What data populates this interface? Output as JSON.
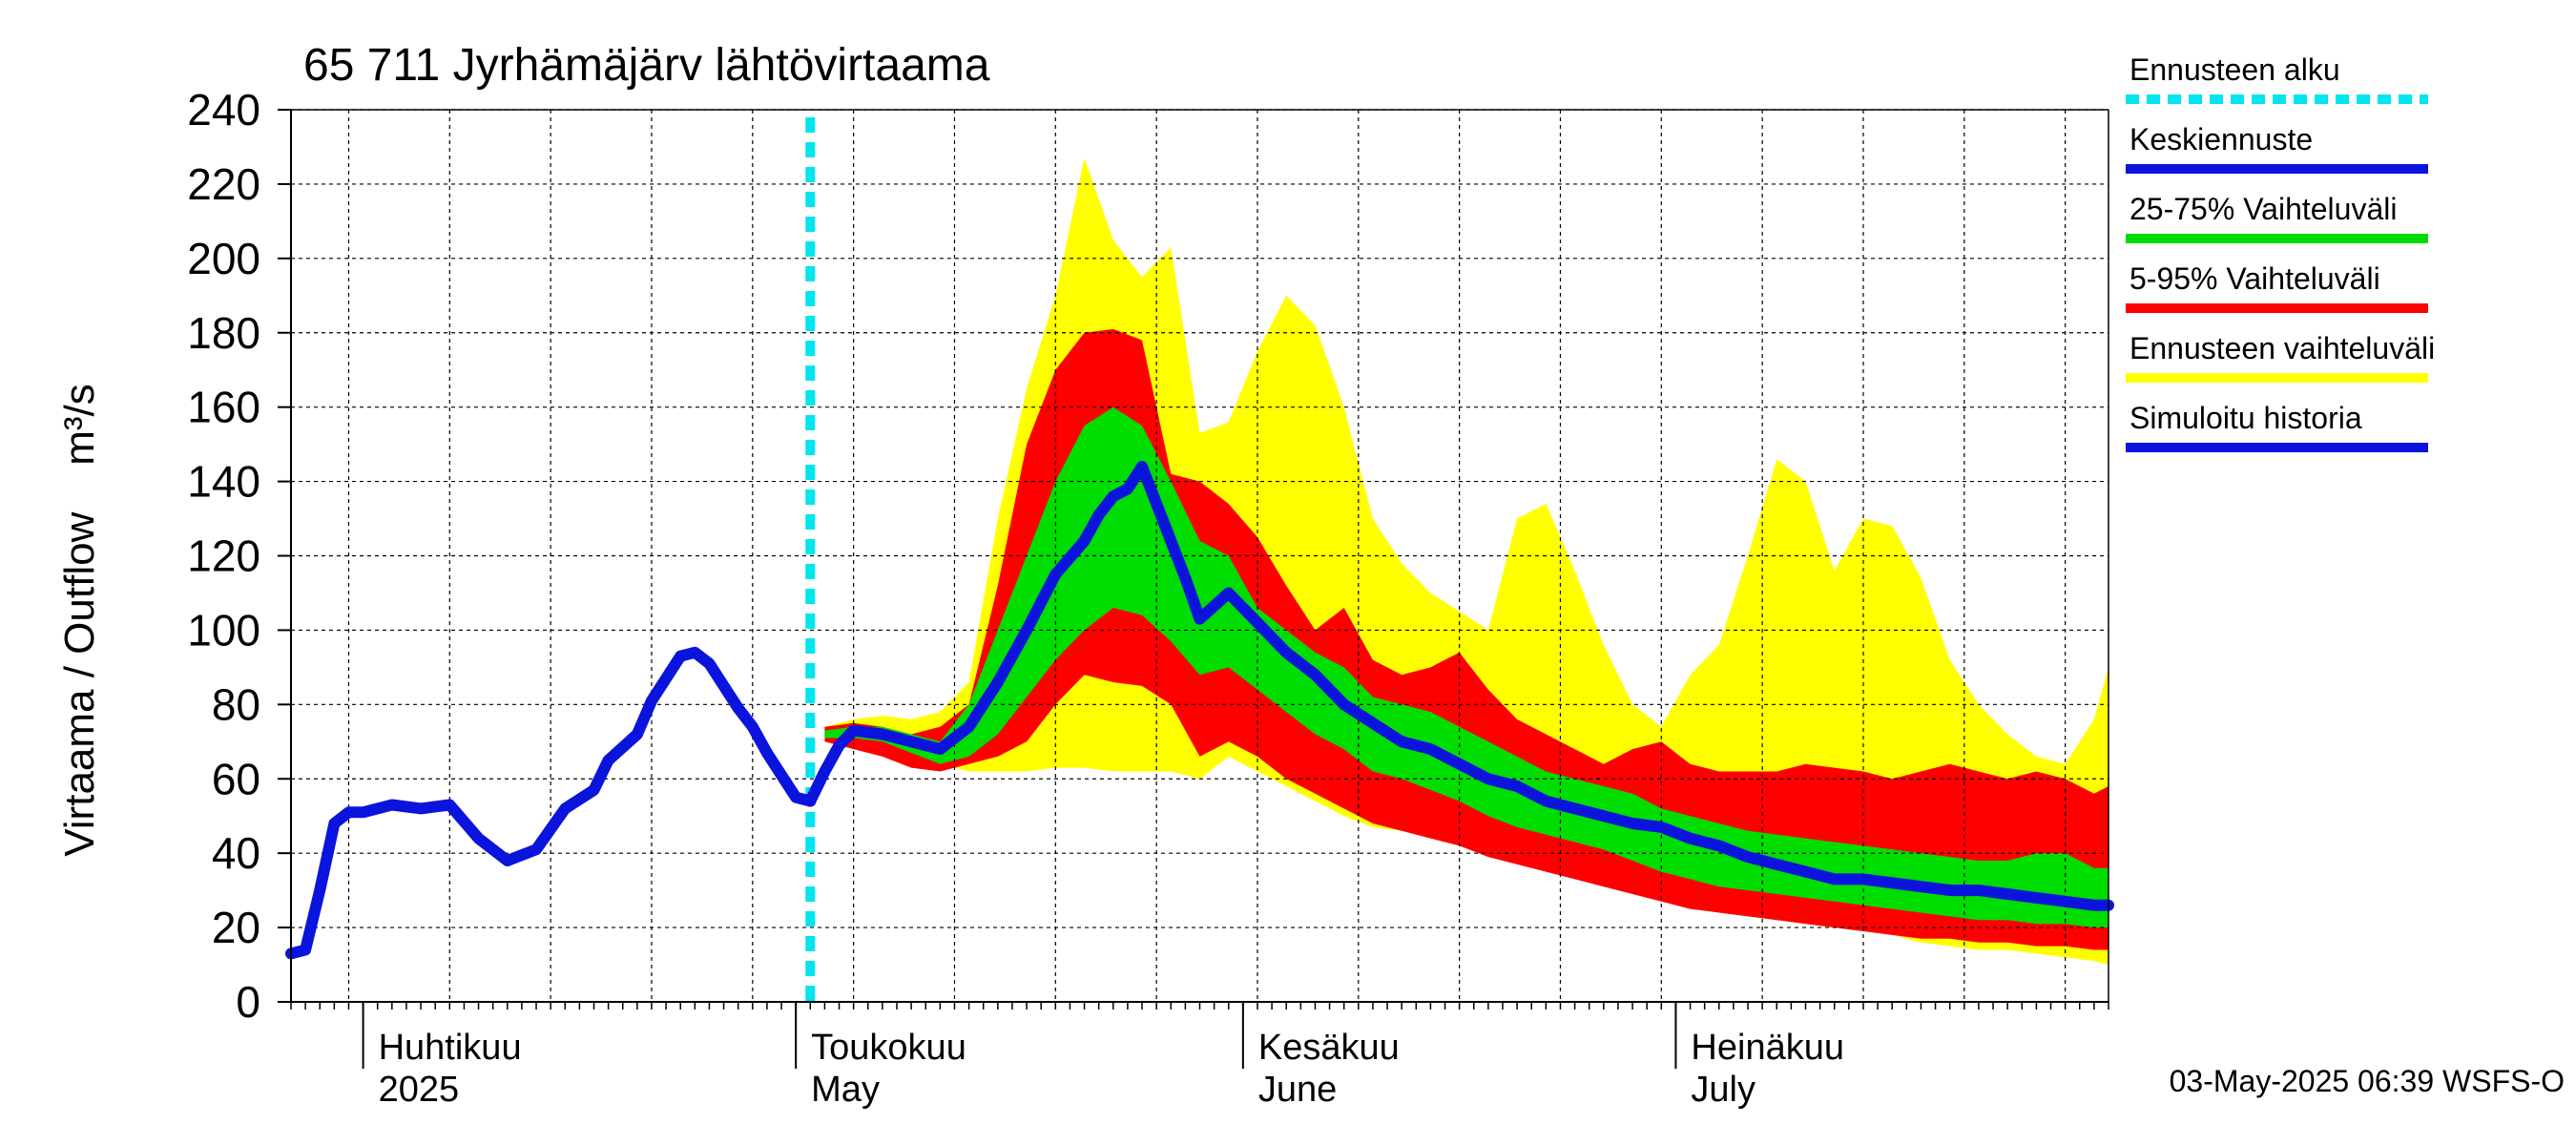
{
  "chart_data": {
    "type": "area",
    "title": "65 711 Jyrhämäjärv lähtövirtaama",
    "ylabel": "Virtaama / Outflow    m³/s",
    "xlabel": "",
    "ylim": [
      0,
      240
    ],
    "xlim": [
      "2025-03-27",
      "2025-07-31"
    ],
    "grid": true,
    "legend_position": "right",
    "y_ticks": [
      0,
      20,
      40,
      60,
      80,
      100,
      120,
      140,
      160,
      180,
      200,
      220,
      240
    ],
    "month_labels": [
      {
        "fi": "Huhtikuu",
        "en": "2025",
        "date": "2025-04-01"
      },
      {
        "fi": "Toukokuu",
        "en": "May",
        "date": "2025-05-01"
      },
      {
        "fi": "Kesäkuu",
        "en": "June",
        "date": "2025-06-01"
      },
      {
        "fi": "Heinäkuu",
        "en": "July",
        "date": "2025-07-01"
      }
    ],
    "forecast_start": "2025-05-02",
    "legend": [
      {
        "label": "Ennusteen alku",
        "color": "#00e5ee",
        "style": "dashed"
      },
      {
        "label": "Keskiennuste",
        "color": "#0a14dc",
        "style": "solid"
      },
      {
        "label": "25-75% Vaihteluväli",
        "color": "#00dd00",
        "style": "solid"
      },
      {
        "label": "5-95% Vaihteluväli",
        "color": "#ff0000",
        "style": "solid"
      },
      {
        "label": "Ennusteen vaihteluväli",
        "color": "#ffff00",
        "style": "solid"
      },
      {
        "label": "Simuloitu historia",
        "color": "#0a14dc",
        "style": "solid"
      }
    ],
    "series": [
      {
        "name": "Simuloitu historia",
        "color": "#0a14dc",
        "x": [
          "2025-03-27",
          "2025-03-28",
          "2025-03-29",
          "2025-03-30",
          "2025-03-31",
          "2025-04-01",
          "2025-04-02",
          "2025-04-03",
          "2025-04-05",
          "2025-04-07",
          "2025-04-09",
          "2025-04-11",
          "2025-04-13",
          "2025-04-15",
          "2025-04-17",
          "2025-04-18",
          "2025-04-20",
          "2025-04-21",
          "2025-04-23",
          "2025-04-24",
          "2025-04-25",
          "2025-04-26",
          "2025-04-27",
          "2025-04-28",
          "2025-04-29",
          "2025-04-30",
          "2025-05-01",
          "2025-05-02"
        ],
        "values": [
          13,
          14,
          30,
          48,
          51,
          51,
          52,
          53,
          52,
          53,
          44,
          38,
          41,
          52,
          57,
          65,
          72,
          81,
          93,
          94,
          91,
          85,
          79,
          74,
          67,
          61,
          55,
          54
        ]
      },
      {
        "name": "Keskiennuste",
        "color": "#0a14dc",
        "x": [
          "2025-05-02",
          "2025-05-03",
          "2025-05-04",
          "2025-05-05",
          "2025-05-07",
          "2025-05-09",
          "2025-05-11",
          "2025-05-13",
          "2025-05-15",
          "2025-05-17",
          "2025-05-19",
          "2025-05-21",
          "2025-05-22",
          "2025-05-23",
          "2025-05-24",
          "2025-05-25",
          "2025-05-27",
          "2025-05-28",
          "2025-05-29",
          "2025-05-31",
          "2025-06-02",
          "2025-06-04",
          "2025-06-06",
          "2025-06-08",
          "2025-06-10",
          "2025-06-12",
          "2025-06-14",
          "2025-06-16",
          "2025-06-18",
          "2025-06-20",
          "2025-06-22",
          "2025-06-24",
          "2025-06-26",
          "2025-06-28",
          "2025-06-30",
          "2025-07-02",
          "2025-07-04",
          "2025-07-06",
          "2025-07-08",
          "2025-07-10",
          "2025-07-12",
          "2025-07-14",
          "2025-07-16",
          "2025-07-18",
          "2025-07-20",
          "2025-07-22",
          "2025-07-24",
          "2025-07-26",
          "2025-07-28",
          "2025-07-30",
          "2025-07-31"
        ],
        "values": [
          54,
          62,
          69,
          73,
          72,
          70,
          68,
          74,
          86,
          100,
          115,
          124,
          131,
          136,
          138,
          144,
          124,
          114,
          103,
          110,
          102,
          94,
          88,
          80,
          75,
          70,
          68,
          64,
          60,
          58,
          54,
          52,
          50,
          48,
          47,
          44,
          42,
          39,
          37,
          35,
          33,
          33,
          32,
          31,
          30,
          30,
          29,
          28,
          27,
          26,
          26
        ]
      }
    ],
    "bands": [
      {
        "name": "Ennusteen vaihteluväli",
        "color": "#ffff00",
        "x": [
          "2025-05-03",
          "2025-05-05",
          "2025-05-07",
          "2025-05-09",
          "2025-05-11",
          "2025-05-13",
          "2025-05-15",
          "2025-05-17",
          "2025-05-19",
          "2025-05-21",
          "2025-05-23",
          "2025-05-25",
          "2025-05-27",
          "2025-05-29",
          "2025-05-31",
          "2025-06-02",
          "2025-06-04",
          "2025-06-06",
          "2025-06-08",
          "2025-06-10",
          "2025-06-12",
          "2025-06-14",
          "2025-06-16",
          "2025-06-18",
          "2025-06-20",
          "2025-06-22",
          "2025-06-24",
          "2025-06-26",
          "2025-06-28",
          "2025-06-30",
          "2025-07-02",
          "2025-07-04",
          "2025-07-06",
          "2025-07-08",
          "2025-07-10",
          "2025-07-12",
          "2025-07-14",
          "2025-07-16",
          "2025-07-18",
          "2025-07-20",
          "2025-07-22",
          "2025-07-24",
          "2025-07-26",
          "2025-07-28",
          "2025-07-30",
          "2025-07-31"
        ],
        "low": [
          70,
          69,
          68,
          66,
          64,
          62,
          62,
          62,
          63,
          63,
          62,
          62,
          62,
          60,
          66,
          62,
          58,
          54,
          50,
          47,
          46,
          44,
          42,
          40,
          38,
          36,
          34,
          32,
          30,
          28,
          26,
          24,
          23,
          22,
          21,
          20,
          19,
          18,
          16,
          15,
          14,
          14,
          13,
          12,
          11,
          10
        ],
        "high": [
          74,
          76,
          77,
          76,
          78,
          86,
          130,
          165,
          190,
          227,
          205,
          195,
          203,
          153,
          156,
          175,
          190,
          182,
          160,
          130,
          118,
          110,
          105,
          100,
          130,
          134,
          116,
          96,
          80,
          74,
          88,
          96,
          120,
          146,
          140,
          116,
          130,
          128,
          114,
          92,
          80,
          72,
          66,
          64,
          76,
          90
        ]
      },
      {
        "name": "5-95% Vaihteluväli",
        "color": "#ff0000",
        "x": [
          "2025-05-03",
          "2025-05-05",
          "2025-05-07",
          "2025-05-09",
          "2025-05-11",
          "2025-05-13",
          "2025-05-15",
          "2025-05-17",
          "2025-05-19",
          "2025-05-21",
          "2025-05-23",
          "2025-05-25",
          "2025-05-27",
          "2025-05-29",
          "2025-05-31",
          "2025-06-02",
          "2025-06-04",
          "2025-06-06",
          "2025-06-08",
          "2025-06-10",
          "2025-06-12",
          "2025-06-14",
          "2025-06-16",
          "2025-06-18",
          "2025-06-20",
          "2025-06-22",
          "2025-06-24",
          "2025-06-26",
          "2025-06-28",
          "2025-06-30",
          "2025-07-02",
          "2025-07-04",
          "2025-07-06",
          "2025-07-08",
          "2025-07-10",
          "2025-07-12",
          "2025-07-14",
          "2025-07-16",
          "2025-07-18",
          "2025-07-20",
          "2025-07-22",
          "2025-07-24",
          "2025-07-26",
          "2025-07-28",
          "2025-07-30",
          "2025-07-31"
        ],
        "low": [
          70,
          68,
          66,
          63,
          62,
          64,
          66,
          70,
          80,
          88,
          86,
          85,
          80,
          66,
          70,
          66,
          60,
          56,
          52,
          48,
          46,
          44,
          42,
          39,
          37,
          35,
          33,
          31,
          29,
          27,
          25,
          24,
          23,
          22,
          21,
          20,
          19,
          18,
          17,
          17,
          16,
          16,
          15,
          15,
          14,
          14
        ],
        "high": [
          74,
          75,
          74,
          72,
          74,
          80,
          112,
          150,
          170,
          180,
          181,
          178,
          142,
          140,
          134,
          125,
          112,
          100,
          106,
          92,
          88,
          90,
          94,
          84,
          76,
          72,
          68,
          64,
          68,
          70,
          64,
          62,
          62,
          62,
          64,
          63,
          62,
          60,
          62,
          64,
          62,
          60,
          62,
          60,
          56,
          58
        ]
      },
      {
        "name": "25-75% Vaihteluväli",
        "color": "#00dd00",
        "x": [
          "2025-05-03",
          "2025-05-05",
          "2025-05-07",
          "2025-05-09",
          "2025-05-11",
          "2025-05-13",
          "2025-05-15",
          "2025-05-17",
          "2025-05-19",
          "2025-05-21",
          "2025-05-23",
          "2025-05-25",
          "2025-05-27",
          "2025-05-29",
          "2025-05-31",
          "2025-06-02",
          "2025-06-04",
          "2025-06-06",
          "2025-06-08",
          "2025-06-10",
          "2025-06-12",
          "2025-06-14",
          "2025-06-16",
          "2025-06-18",
          "2025-06-20",
          "2025-06-22",
          "2025-06-24",
          "2025-06-26",
          "2025-06-28",
          "2025-06-30",
          "2025-07-02",
          "2025-07-04",
          "2025-07-06",
          "2025-07-08",
          "2025-07-10",
          "2025-07-12",
          "2025-07-14",
          "2025-07-16",
          "2025-07-18",
          "2025-07-20",
          "2025-07-22",
          "2025-07-24",
          "2025-07-26",
          "2025-07-28",
          "2025-07-30",
          "2025-07-31"
        ],
        "low": [
          71,
          71,
          70,
          67,
          64,
          66,
          72,
          82,
          92,
          100,
          106,
          104,
          97,
          88,
          90,
          84,
          78,
          72,
          68,
          62,
          60,
          57,
          54,
          50,
          47,
          45,
          43,
          41,
          38,
          35,
          33,
          31,
          30,
          29,
          28,
          27,
          26,
          25,
          24,
          23,
          22,
          22,
          21,
          21,
          20,
          20
        ],
        "high": [
          73,
          74,
          74,
          72,
          70,
          80,
          100,
          120,
          140,
          155,
          160,
          155,
          140,
          124,
          120,
          106,
          100,
          94,
          90,
          82,
          80,
          78,
          74,
          70,
          66,
          62,
          60,
          58,
          56,
          52,
          50,
          48,
          46,
          45,
          44,
          43,
          42,
          41,
          40,
          39,
          38,
          38,
          40,
          40,
          36,
          36
        ]
      }
    ]
  },
  "footer": {
    "timestamp": "03-May-2025 06:39 WSFS-O"
  }
}
